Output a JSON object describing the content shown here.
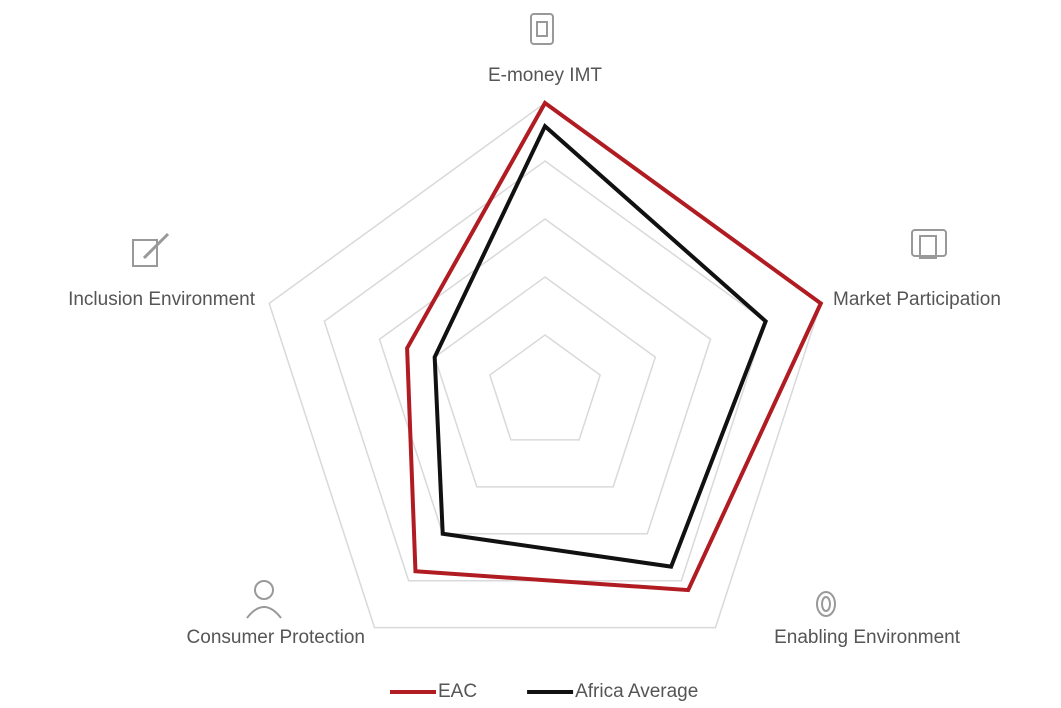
{
  "chart_data": {
    "type": "radar",
    "categories": [
      "E-money IMT",
      "Market Participation",
      "Enabling Environment",
      "Consumer Protection",
      "Inclusion Environment"
    ],
    "series": [
      {
        "name": "EAC",
        "color": "#b01c22",
        "values": [
          5.0,
          5.0,
          4.2,
          3.8,
          2.5
        ]
      },
      {
        "name": "Africa Average",
        "color": "#111111",
        "values": [
          4.6,
          4.0,
          3.7,
          3.0,
          2.0
        ]
      }
    ],
    "rlim": [
      0,
      5
    ],
    "rticks": [
      1,
      2,
      3,
      4,
      5
    ],
    "grid": true,
    "legend": "bottom"
  }
}
